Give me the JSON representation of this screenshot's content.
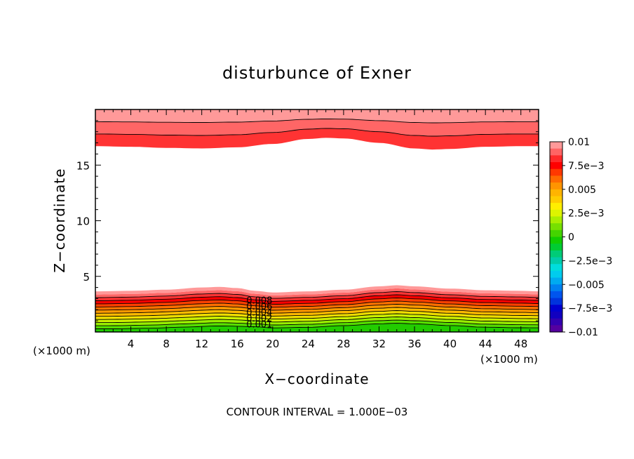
{
  "chart_data": {
    "type": "heatmap",
    "title": "disturbunce of Exner",
    "xlabel": "X−coordinate",
    "ylabel": "Z−coordinate",
    "x_unit_left": "(×1000 m)",
    "x_unit_right": "(×1000 m)",
    "footer": "CONTOUR INTERVAL = 1.000E−03",
    "xlim": [
      0,
      50
    ],
    "ylim": [
      0,
      20
    ],
    "xticks": [
      4,
      8,
      12,
      16,
      20,
      24,
      28,
      32,
      36,
      40,
      44,
      48
    ],
    "xtick_labels": [
      "4",
      "8",
      "12",
      "16",
      "20",
      "24",
      "28",
      "32",
      "36",
      "40",
      "44",
      "48"
    ],
    "yticks": [
      5,
      10,
      15
    ],
    "ytick_labels": [
      "5",
      "10",
      "15"
    ],
    "contour_levels": [
      0.001,
      0.002,
      0.003,
      0.004,
      0.005,
      0.006,
      0.007,
      0.008,
      0.009,
      0.01
    ],
    "contour_labels": [
      "0.008",
      "0.006",
      "0.004",
      "0.002",
      "0.001"
    ],
    "lower_band_base_z": [
      [
        0,
        0.0
      ],
      [
        2,
        0.0
      ],
      [
        6,
        0.05
      ],
      [
        10,
        0.15
      ],
      [
        14,
        0.25
      ],
      [
        18,
        0.2
      ],
      [
        20,
        0.1
      ],
      [
        24,
        0.15
      ],
      [
        28,
        0.3
      ],
      [
        32,
        0.45
      ],
      [
        34,
        0.5
      ],
      [
        36,
        0.45
      ],
      [
        40,
        0.3
      ],
      [
        44,
        0.15
      ],
      [
        48,
        0.1
      ],
      [
        50,
        0.1
      ]
    ],
    "lower_band_top_z": [
      [
        0,
        3.65
      ],
      [
        4,
        3.7
      ],
      [
        8,
        3.8
      ],
      [
        12,
        4.0
      ],
      [
        14,
        4.05
      ],
      [
        16,
        3.95
      ],
      [
        18,
        3.7
      ],
      [
        20,
        3.55
      ],
      [
        24,
        3.65
      ],
      [
        28,
        3.8
      ],
      [
        32,
        4.1
      ],
      [
        34,
        4.2
      ],
      [
        36,
        4.1
      ],
      [
        40,
        3.9
      ],
      [
        44,
        3.75
      ],
      [
        48,
        3.7
      ],
      [
        50,
        3.65
      ]
    ],
    "upper_band_bottom_z": [
      [
        0,
        16.7
      ],
      [
        4,
        16.65
      ],
      [
        8,
        16.55
      ],
      [
        12,
        16.5
      ],
      [
        16,
        16.6
      ],
      [
        20,
        16.9
      ],
      [
        24,
        17.35
      ],
      [
        26,
        17.45
      ],
      [
        28,
        17.4
      ],
      [
        32,
        17.0
      ],
      [
        36,
        16.5
      ],
      [
        38,
        16.4
      ],
      [
        40,
        16.45
      ],
      [
        44,
        16.65
      ],
      [
        48,
        16.7
      ],
      [
        50,
        16.7
      ]
    ],
    "upper_band_top_z": 19.6,
    "colorbar": {
      "labels": [
        "0.01",
        "7.5e−3",
        "0.005",
        "2.5e−3",
        "0",
        "−2.5e−3",
        "−0.005",
        "−7.5e−3",
        "−0.01"
      ],
      "colors": [
        "#ff9999",
        "#ff6464",
        "#ff2a2a",
        "#ff0000",
        "#ff3800",
        "#ff6a00",
        "#ff9400",
        "#ffb400",
        "#ffcc00",
        "#ffee00",
        "#ddf400",
        "#aaee00",
        "#77e000",
        "#44d400",
        "#11cc00",
        "#00cc33",
        "#00cc77",
        "#00ccaa",
        "#00dddd",
        "#00ccee",
        "#00aaf0",
        "#0080f0",
        "#0055ee",
        "#0033dd",
        "#0000d0",
        "#1100c0",
        "#3300b0",
        "#5500a0"
      ]
    },
    "band_colors_bottom_to_top": [
      "#22cc00",
      "#55dd00",
      "#99ee00",
      "#ccf000",
      "#eedd00",
      "#ffbb00",
      "#ff9900",
      "#ff7000",
      "#ff4000",
      "#ff0000",
      "#ff3333",
      "#ff6666",
      "#ff9999"
    ]
  }
}
